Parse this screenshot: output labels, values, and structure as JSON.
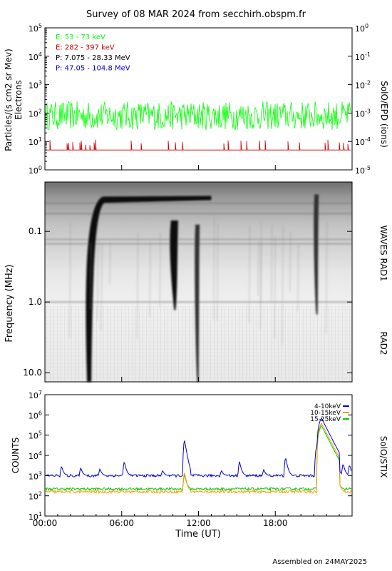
{
  "page_title": "Survey of 08 MAR 2024 from secchirh.obspm.fr",
  "footer": "Assembled on 24MAY2025",
  "colors": {
    "e_low": "#00ff00",
    "e_high": "#cc0000",
    "p_low": "#000000",
    "p_high": "#0000cc",
    "stix_4_10": "#0000cc",
    "stix_10_15": "#ff9900",
    "stix_15_25": "#00cc00"
  },
  "chart_data": [
    {
      "type": "line",
      "panel": "SolO/EPD",
      "ylabel_left": "Particles/(s cm2 sr Mev)",
      "ylabel_left_sub": "Electrons",
      "ylabel_right": "SolO/EPD (ions)",
      "left_ticks": [
        "10^0",
        "10^1",
        "10^2",
        "10^3",
        "10^4",
        "10^5"
      ],
      "right_ticks": [
        "10^-5",
        "10^-4",
        "10^-3",
        "10^-2",
        "10^-1",
        "10^0"
      ],
      "ylim_left": [
        1,
        100000
      ],
      "ylim_right": [
        1e-05,
        1
      ],
      "yscale": "log",
      "xlim_hours": [
        0,
        24
      ],
      "legend_placement": "top-left",
      "series": [
        {
          "name": "E: 53 - 73 keV",
          "color_key": "e_low",
          "baseline": 80,
          "low": 25,
          "high": 260
        },
        {
          "name": "E: 282 - 397 keV",
          "color_key": "e_high",
          "baseline": 5,
          "low": 4,
          "high": 12
        },
        {
          "name": "P: 7.075 - 28.33 MeV",
          "color_key": "p_low"
        },
        {
          "name": "P: 47.05 - 104.8 MeV",
          "color_key": "p_high"
        }
      ]
    },
    {
      "type": "heatmap",
      "panel": "radio spectrogram",
      "ylabel": "Frequency (MHz)",
      "yscale": "log",
      "ylim_mhz": [
        13.5,
        0.02
      ],
      "yticks": [
        "0.1",
        "1.0",
        "10.0"
      ],
      "right_labels": [
        "WAVES RAD1",
        "RAD2"
      ],
      "xlim_hours": [
        0,
        24
      ],
      "features": [
        {
          "kind": "type III burst",
          "start_hour": 3.4,
          "low_freq_mhz": 0.03,
          "high_freq_mhz": 13.5,
          "intensity": "strong"
        },
        {
          "kind": "type III burst",
          "start_hour": 10.1,
          "low_freq_mhz": 0.07,
          "high_freq_mhz": 1.3,
          "intensity": "strong"
        },
        {
          "kind": "type III burst",
          "start_hour": 11.9,
          "low_freq_mhz": 0.08,
          "high_freq_mhz": 13.5,
          "intensity": "moderate"
        },
        {
          "kind": "complex burst",
          "start_hour": 21.2,
          "low_freq_mhz": 0.03,
          "high_freq_mhz": 1.5,
          "intensity": "moderate"
        }
      ]
    },
    {
      "type": "line",
      "panel": "SolO/STIX",
      "ylabel": "COUNTS",
      "ylabel_right": "SolO/STIX",
      "yscale": "log",
      "ylim": [
        10,
        10000000
      ],
      "yticks": [
        "10^1",
        "10^2",
        "10^3",
        "10^4",
        "10^5",
        "10^6",
        "10^7"
      ],
      "xlabel": "Time (UT)",
      "xticks": [
        "00:00",
        "06:00",
        "12:00",
        "18:00"
      ],
      "xlim_hours": [
        0,
        24
      ],
      "legend_placement": "top-right",
      "series": [
        {
          "name": "4-10keV",
          "color_key": "stix_4_10",
          "baseline": 1000,
          "peaks": [
            [
              1.3,
              3000
            ],
            [
              2.8,
              2500
            ],
            [
              4.3,
              2200
            ],
            [
              6.2,
              5000
            ],
            [
              9.2,
              1800
            ],
            [
              10.9,
              60000
            ],
            [
              13.8,
              1800
            ],
            [
              15.2,
              5000
            ],
            [
              17.1,
              2000
            ],
            [
              18.8,
              8000
            ],
            [
              21.2,
              25000
            ],
            [
              21.6,
              700000
            ],
            [
              22.8,
              6000
            ],
            [
              23.3,
              4000
            ],
            [
              23.8,
              3500
            ]
          ]
        },
        {
          "name": "10-15keV",
          "color_key": "stix_10_15",
          "baseline": 160,
          "peaks": [
            [
              10.9,
              1500
            ],
            [
              21.6,
              400000
            ],
            [
              22.9,
              800
            ]
          ]
        },
        {
          "name": "15-25keV",
          "color_key": "stix_15_25",
          "baseline": 220,
          "peaks": [
            [
              10.9,
              1200
            ],
            [
              21.6,
              300000
            ],
            [
              22.9,
              600
            ]
          ]
        }
      ]
    }
  ]
}
